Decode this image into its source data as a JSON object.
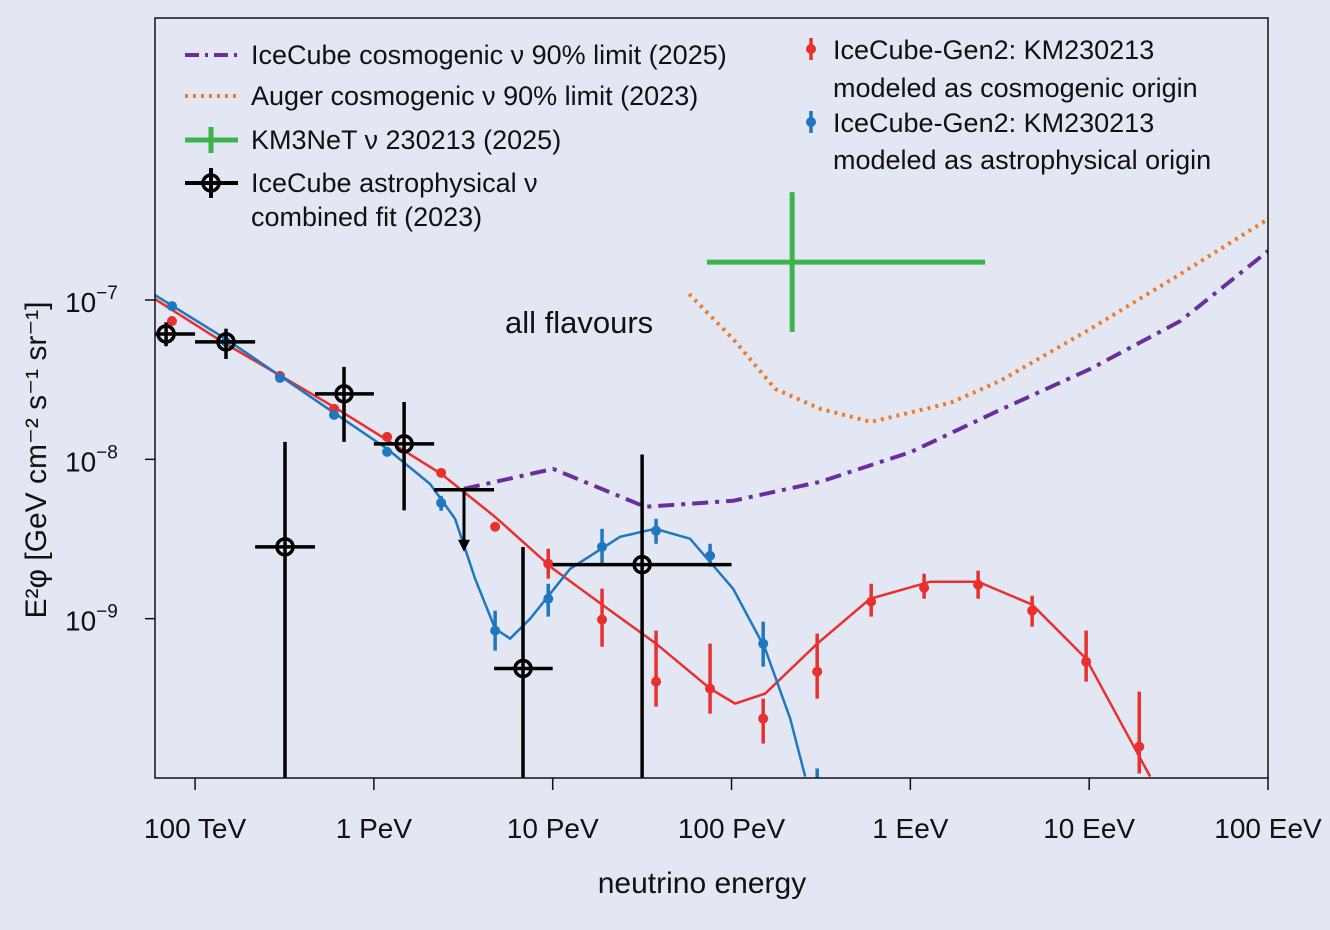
{
  "chart_data": {
    "type": "scatter",
    "xlabel": "neutrino energy",
    "ylabel": "E²φ [GeV cm⁻² s⁻¹ sr⁻¹]",
    "annotation": "all flavours",
    "x_scale": "log10 of energy in GeV",
    "y_scale": "log10 of E²φ in GeV cm⁻² s⁻¹ sr⁻¹",
    "xlim_log10": [
      4.776,
      11.0
    ],
    "ylim_log10": [
      -10.0,
      -5.23
    ],
    "x_ticks": [
      {
        "v": 5,
        "label": "100 TeV"
      },
      {
        "v": 6,
        "label": "1 PeV"
      },
      {
        "v": 7,
        "label": "10 PeV"
      },
      {
        "v": 8,
        "label": "100 PeV"
      },
      {
        "v": 9,
        "label": "1 EeV"
      },
      {
        "v": 10,
        "label": "10 EeV"
      },
      {
        "v": 11,
        "label": "100 EeV"
      }
    ],
    "y_ticks": [
      {
        "v": -7,
        "base": "10",
        "exp": "−7"
      },
      {
        "v": -8,
        "base": "10",
        "exp": "−8"
      },
      {
        "v": -9,
        "base": "10",
        "exp": "−9"
      }
    ],
    "colors": {
      "purple": "#6b2f9b",
      "orange": "#f07a2a",
      "green": "#3cb44b",
      "black": "#000000",
      "red": "#e8302e",
      "blue": "#1f77c0",
      "background": "#e3e7f3"
    },
    "legend": {
      "placement": "top",
      "items": [
        {
          "key": "icecube_limit",
          "label": "IceCube cosmogenic ν 90% limit (2025)"
        },
        {
          "key": "auger_limit",
          "label": "Auger cosmogenic ν 90% limit (2023)"
        },
        {
          "key": "km3net",
          "label": "KM3NeT ν 230213 (2025)"
        },
        {
          "key": "icecube_astro",
          "label": "IceCube astrophysical ν",
          "label2": "combined fit (2023)"
        },
        {
          "key": "gen2_cosmo",
          "label": "IceCube-Gen2: KM230213",
          "label2": "modeled as cosmogenic origin"
        },
        {
          "key": "gen2_astro",
          "label": "IceCube-Gen2: KM230213",
          "label2": "modeled as astrophysical origin"
        }
      ]
    },
    "series": [
      {
        "name": "IceCube cosmogenic ν 90% limit (2025)",
        "kind": "dashdot",
        "color": "#6b2f9b",
        "x": [
          6.504,
          7.002,
          7.517,
          8.009,
          8.496,
          9.004,
          9.502,
          10.006,
          10.51,
          11.0
        ],
        "y": [
          -8.185,
          -8.06,
          -8.298,
          -8.26,
          -8.141,
          -7.953,
          -7.69,
          -7.433,
          -7.132,
          -6.693
        ]
      },
      {
        "name": "Auger cosmogenic ν 90% limit (2023)",
        "kind": "dotted",
        "color": "#f07a2a",
        "x": [
          7.763,
          8.009,
          8.244,
          8.496,
          8.781,
          9.223,
          9.502,
          10.006,
          10.51,
          11.0
        ],
        "y": [
          -6.962,
          -7.245,
          -7.558,
          -7.683,
          -7.765,
          -7.646,
          -7.508,
          -7.182,
          -6.837,
          -6.492
        ]
      },
      {
        "name": "IceCube-Gen2 cosmogenic model curve",
        "kind": "line",
        "color": "#e8302e",
        "x": [
          4.776,
          5.173,
          5.777,
          6.376,
          6.678,
          7.002,
          7.276,
          7.578,
          7.88,
          8.02,
          8.188,
          8.479,
          8.775,
          9.111,
          9.379,
          9.681,
          9.983,
          10.341
        ],
        "y": [
          -6.994,
          -7.276,
          -7.671,
          -8.091,
          -8.361,
          -8.687,
          -8.912,
          -9.157,
          -9.439,
          -9.533,
          -9.47,
          -9.157,
          -8.875,
          -8.768,
          -8.768,
          -8.912,
          -9.251,
          -9.991
        ]
      },
      {
        "name": "IceCube-Gen2 astrophysical model curve",
        "kind": "line",
        "color": "#1f77c0",
        "x": [
          4.776,
          5.173,
          5.777,
          6.074,
          6.314,
          6.454,
          6.566,
          6.678,
          6.762,
          6.874,
          7.097,
          7.377,
          7.573,
          7.768,
          8.009,
          8.188,
          8.328,
          8.412
        ],
        "y": [
          -6.969,
          -7.245,
          -7.708,
          -7.934,
          -8.154,
          -8.373,
          -8.749,
          -9.063,
          -9.125,
          -9.0,
          -8.687,
          -8.486,
          -8.436,
          -8.498,
          -8.812,
          -9.188,
          -9.627,
          -9.991
        ]
      },
      {
        "name": "IceCube-Gen2: KM230213 modeled as cosmogenic origin",
        "kind": "points",
        "color": "#e8302e",
        "points": [
          {
            "x": 4.871,
            "y": -7.132
          },
          {
            "x": 5.475,
            "y": -7.476
          },
          {
            "x": 5.777,
            "y": -7.683
          },
          {
            "x": 6.074,
            "y": -7.859
          },
          {
            "x": 6.376,
            "y": -8.085
          },
          {
            "x": 6.678,
            "y": -8.423
          },
          {
            "x": 6.975,
            "y": -8.655,
            "ylo": -8.749,
            "yhi": -8.561
          },
          {
            "x": 7.276,
            "y": -9.006,
            "ylo": -9.176,
            "yhi": -8.812
          },
          {
            "x": 7.578,
            "y": -9.395,
            "ylo": -9.552,
            "yhi": -9.075
          },
          {
            "x": 7.88,
            "y": -9.439,
            "ylo": -9.596,
            "yhi": -9.157
          },
          {
            "x": 8.177,
            "y": -9.627,
            "ylo": -9.784,
            "yhi": -9.502
          },
          {
            "x": 8.479,
            "y": -9.332,
            "ylo": -9.502,
            "yhi": -9.094
          },
          {
            "x": 8.781,
            "y": -8.893,
            "ylo": -8.987,
            "yhi": -8.781
          },
          {
            "x": 9.077,
            "y": -8.806,
            "ylo": -8.875,
            "yhi": -8.718
          },
          {
            "x": 9.379,
            "y": -8.787,
            "ylo": -8.875,
            "yhi": -8.699
          },
          {
            "x": 9.681,
            "y": -8.95,
            "ylo": -9.05,
            "yhi": -8.856
          },
          {
            "x": 9.983,
            "y": -9.27,
            "ylo": -9.395,
            "yhi": -9.075
          },
          {
            "x": 10.28,
            "y": -9.803,
            "ylo": -9.972,
            "yhi": -9.458
          }
        ]
      },
      {
        "name": "IceCube-Gen2: KM230213 modeled as astrophysical origin",
        "kind": "points",
        "color": "#1f77c0",
        "points": [
          {
            "x": 4.871,
            "y": -7.038
          },
          {
            "x": 5.173,
            "y": -7.263
          },
          {
            "x": 5.475,
            "y": -7.489
          },
          {
            "x": 5.777,
            "y": -7.721
          },
          {
            "x": 6.074,
            "y": -7.953
          },
          {
            "x": 6.376,
            "y": -8.273,
            "ylo": -8.323,
            "yhi": -8.229
          },
          {
            "x": 6.678,
            "y": -9.075,
            "ylo": -9.201,
            "yhi": -8.95
          },
          {
            "x": 6.975,
            "y": -8.875,
            "ylo": -8.987,
            "yhi": -8.781
          },
          {
            "x": 7.276,
            "y": -8.549,
            "ylo": -8.655,
            "yhi": -8.436
          },
          {
            "x": 7.578,
            "y": -8.448,
            "ylo": -8.53,
            "yhi": -8.373
          },
          {
            "x": 7.88,
            "y": -8.605,
            "ylo": -8.674,
            "yhi": -8.53
          },
          {
            "x": 8.177,
            "y": -9.157,
            "ylo": -9.301,
            "yhi": -9.019
          },
          {
            "x": 8.479,
            "y": -10.1,
            "ylo": -10.1,
            "yhi": -9.94
          }
        ]
      },
      {
        "name": "IceCube astrophysical ν combined fit (2023)",
        "kind": "crosses",
        "color": "#000000",
        "points": [
          {
            "x": 4.838,
            "y": -7.213,
            "xlo": 4.7,
            "xhi": 5.0,
            "ylo": -7.29,
            "yhi": -7.14
          },
          {
            "x": 5.173,
            "y": -7.263,
            "xlo": 5.0,
            "xhi": 5.336,
            "ylo": -7.37,
            "yhi": -7.18
          },
          {
            "x": 5.503,
            "y": -8.549,
            "xlo": 5.336,
            "xhi": 5.671,
            "ylo": -10.1,
            "yhi": -7.89
          },
          {
            "x": 5.833,
            "y": -7.589,
            "xlo": 5.671,
            "xhi": 6.0,
            "ylo": -7.89,
            "yhi": -7.42
          },
          {
            "x": 6.169,
            "y": -7.903,
            "xlo": 6.0,
            "xhi": 6.337,
            "ylo": -8.32,
            "yhi": -7.64
          },
          {
            "x": 6.504,
            "y": -8.191,
            "xlo": 6.337,
            "xhi": 6.672,
            "upper_limit": true,
            "arrow_to": -8.58
          },
          {
            "x": 6.834,
            "y": -9.313,
            "xlo": 6.672,
            "xhi": 7.0,
            "ylo": -10.1,
            "yhi": -8.55
          },
          {
            "x": 7.5,
            "y": -8.661,
            "xlo": 7.0,
            "xhi": 8.0,
            "ylo": -10.1,
            "yhi": -7.97
          }
        ]
      },
      {
        "name": "KM3NeT ν 230213 (2025)",
        "kind": "cross",
        "color": "#3cb44b",
        "points": [
          {
            "x": 8.339,
            "y": -6.762,
            "xlo": 7.863,
            "xhi": 9.418,
            "ylo": -7.2,
            "yhi": -6.323
          }
        ]
      }
    ]
  }
}
